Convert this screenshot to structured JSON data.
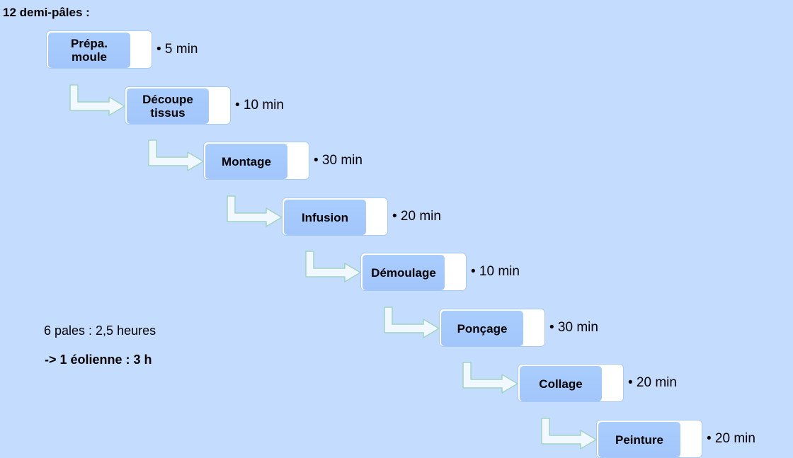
{
  "title": "12 demi-pâles :",
  "steps": [
    {
      "label": "Prépa.\nmoule",
      "duration": "• 5 min"
    },
    {
      "label": "Découpe\ntissus",
      "duration": "• 10 min"
    },
    {
      "label": "Montage",
      "duration": "• 30 min"
    },
    {
      "label": "Infusion",
      "duration": "• 20 min"
    },
    {
      "label": "Démoulage",
      "duration": "• 10 min"
    },
    {
      "label": "Ponçage",
      "duration": "• 30 min"
    },
    {
      "label": "Collage",
      "duration": "• 20 min"
    },
    {
      "label": "Peinture",
      "duration": "• 20 min"
    }
  ],
  "notes": {
    "pales": "6 pales : 2,5 heures",
    "eolienne": "-> 1 éolienne : 3 h"
  },
  "colors": {
    "background": "#c4ddff",
    "box_fill": "#a9cdfd",
    "box_border": "#a8c8f5",
    "arrow_fill": "#f2f8ff"
  }
}
